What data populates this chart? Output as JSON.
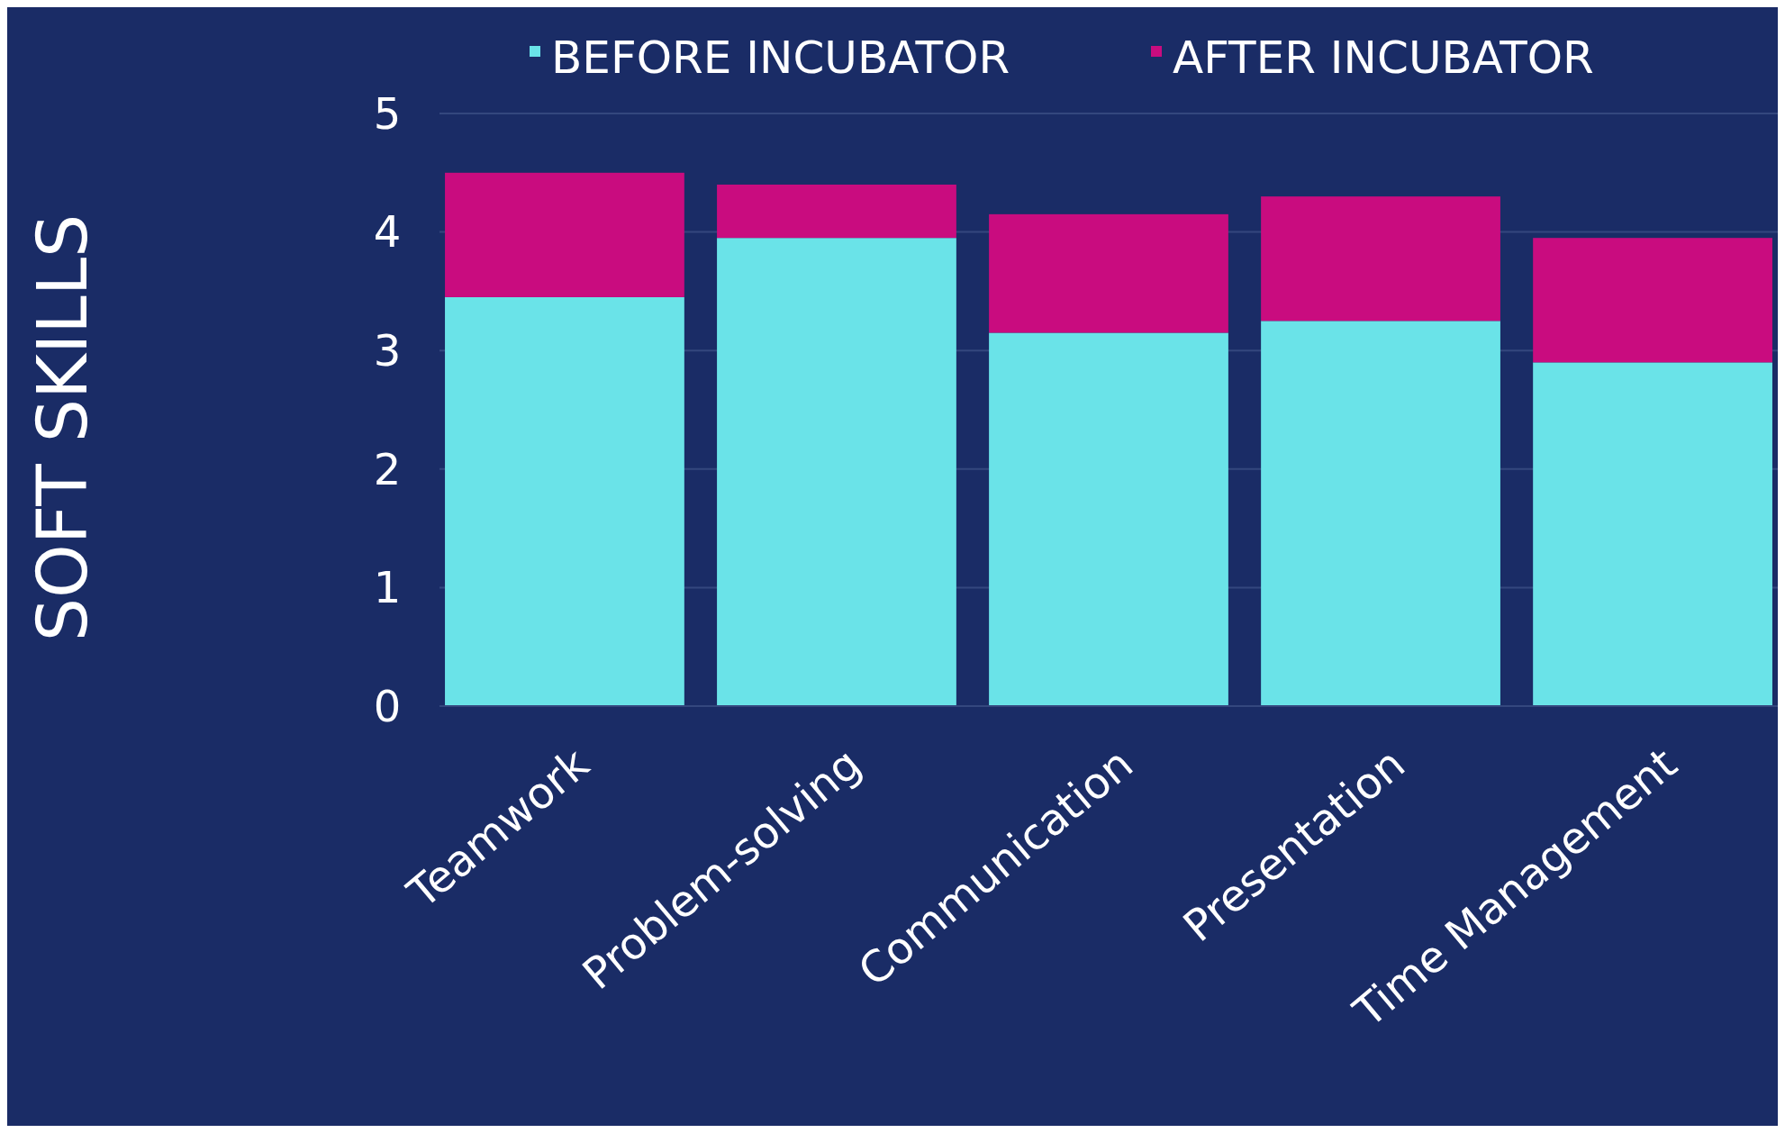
{
  "chart_data": {
    "type": "bar",
    "stacked": true,
    "ylabel": "SOFT SKILLS",
    "categories": [
      "Teamwork",
      "Problem-solving",
      "Communication",
      "Presentation",
      "Time Management"
    ],
    "series": [
      {
        "name": "BEFORE INCUBATOR",
        "color": "#6ae3e8",
        "values": [
          3.45,
          3.95,
          3.15,
          3.25,
          2.9
        ]
      },
      {
        "name": "AFTER INCUBATOR",
        "color": "#c90c7f",
        "values": [
          1.05,
          0.45,
          1.0,
          1.05,
          1.05
        ]
      }
    ],
    "ylim": [
      0,
      5
    ],
    "yticks": [
      0,
      1,
      2,
      3,
      4,
      5
    ],
    "grid": "y",
    "legend": "top"
  }
}
